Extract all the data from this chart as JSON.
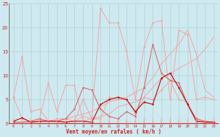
{
  "xlabel": "Vent moyen/en rafales ( km/h )",
  "background_color": "#ceeaf0",
  "grid_color": "#aacccc",
  "x_values": [
    0,
    1,
    2,
    3,
    4,
    5,
    6,
    7,
    8,
    9,
    10,
    11,
    12,
    13,
    14,
    15,
    16,
    17,
    18,
    19,
    20,
    21,
    22,
    23
  ],
  "line_spike1_y": [
    5.5,
    14.0,
    2.5,
    3.0,
    0.5,
    1.0,
    1.0,
    0.5,
    5.0,
    1.0,
    24.0,
    21.0,
    21.0,
    15.0,
    5.0,
    16.0,
    21.0,
    21.5,
    5.0,
    19.5,
    18.5,
    5.0,
    5.5,
    5.0
  ],
  "line_spike2_y": [
    5.5,
    1.0,
    0.5,
    1.0,
    8.5,
    2.5,
    8.0,
    8.0,
    0.5,
    1.0,
    1.0,
    5.5,
    5.0,
    5.0,
    2.0,
    5.5,
    5.0,
    7.0,
    9.0,
    5.0,
    4.5,
    0.5,
    0.5,
    0.3
  ],
  "line_trend1_y": [
    0.3,
    0.3,
    0.3,
    0.5,
    0.5,
    0.5,
    1.0,
    1.5,
    2.0,
    2.5,
    3.5,
    4.5,
    5.0,
    5.5,
    6.5,
    7.5,
    9.5,
    12.5,
    14.5,
    16.5,
    19.5,
    14.5,
    7.0,
    5.5
  ],
  "line_trend2_y": [
    0.3,
    0.3,
    0.3,
    0.3,
    0.5,
    0.3,
    0.5,
    0.5,
    1.5,
    1.0,
    1.5,
    2.0,
    3.5,
    4.0,
    4.5,
    5.5,
    7.5,
    9.5,
    10.5,
    11.5,
    12.5,
    13.5,
    15.5,
    18.0
  ],
  "line_mid1_y": [
    0.3,
    0.3,
    0.5,
    1.0,
    0.5,
    0.5,
    1.0,
    3.0,
    7.5,
    7.0,
    3.0,
    1.5,
    1.0,
    2.5,
    1.5,
    7.5,
    16.5,
    10.5,
    9.0,
    8.5,
    4.0,
    1.0,
    0.5,
    0.3
  ],
  "line_dark1_y": [
    0.5,
    1.2,
    0.3,
    0.5,
    0.5,
    0.5,
    0.3,
    0.5,
    0.5,
    0.3,
    4.0,
    5.0,
    5.5,
    5.0,
    2.5,
    4.5,
    4.0,
    9.5,
    10.5,
    7.5,
    4.0,
    0.5,
    0.3,
    0.3
  ],
  "color_light": "#f5a0a0",
  "color_mid": "#e06060",
  "color_dark": "#bb1111",
  "ylim": [
    0,
    25
  ],
  "xlim": [
    -0.5,
    23.5
  ],
  "yticks": [
    0,
    5,
    10,
    15,
    20,
    25
  ]
}
